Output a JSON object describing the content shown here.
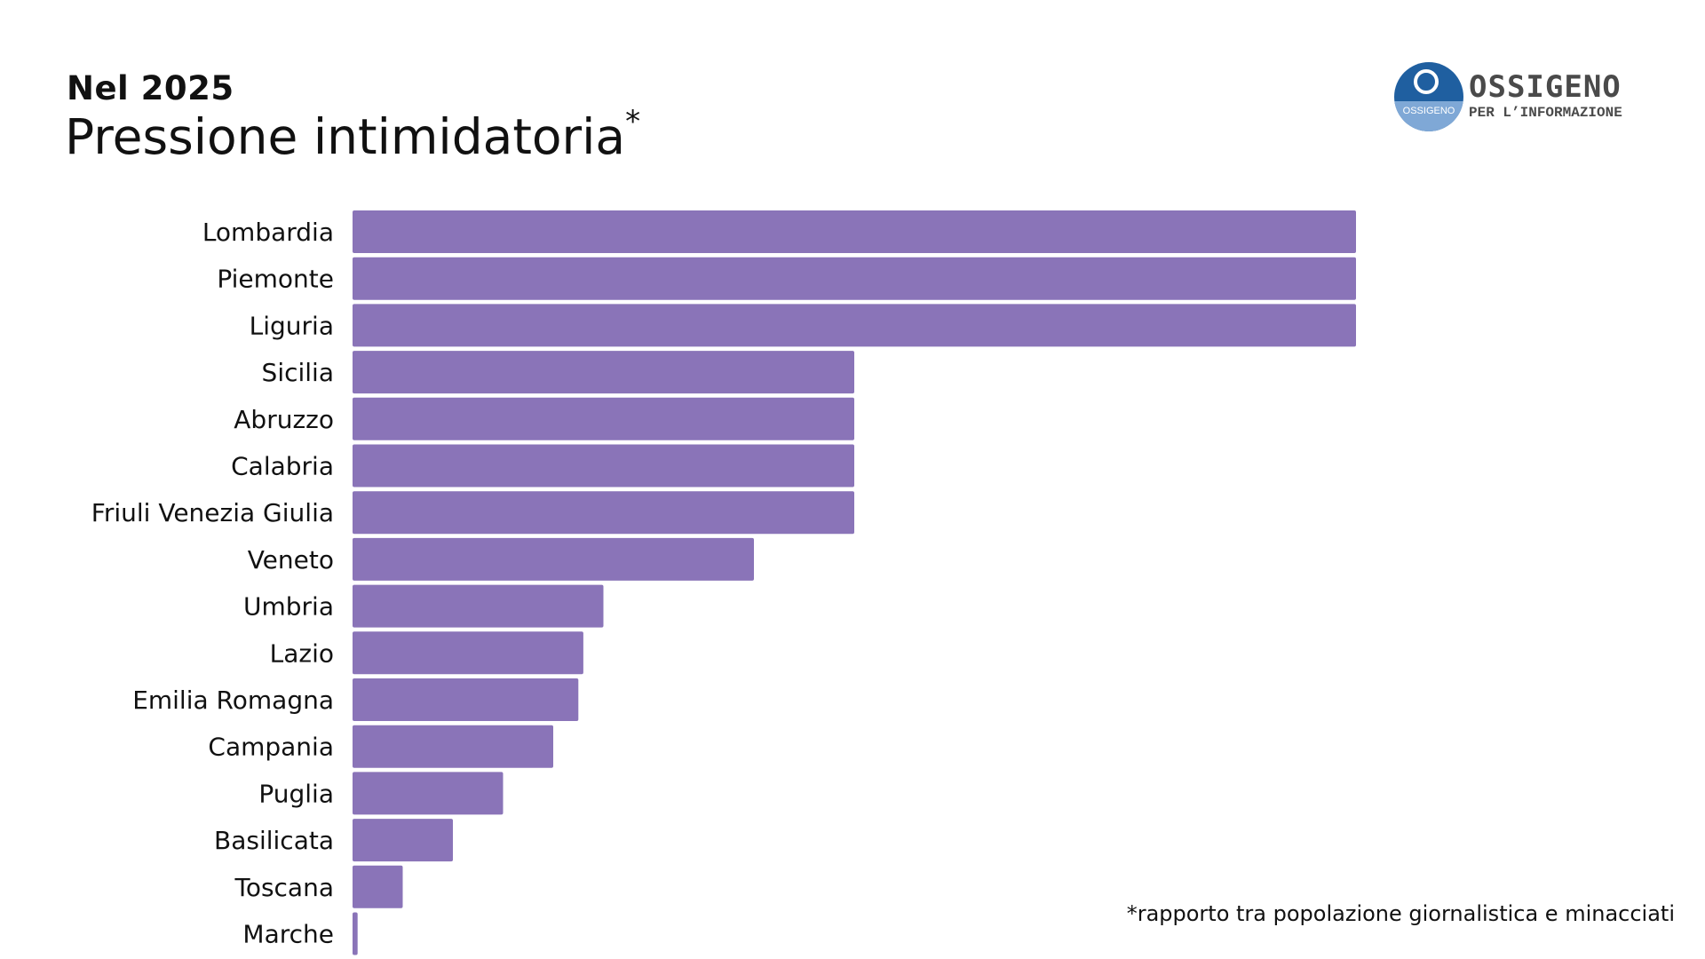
{
  "header": {
    "subtitle": "Nel 2025",
    "title": "Pressione intimidatoria",
    "title_marker": "*"
  },
  "logo": {
    "main": "OSSIGENO",
    "sub": "PER L’INFORMAZIONE",
    "badge": "OSSIGENO",
    "colors": {
      "dark": "#1f5fa0",
      "light": "#7fa8d6"
    }
  },
  "footnote": "*rapporto tra popolazione giornalistica e minacciati",
  "colors": {
    "bar": "#8a74b8"
  },
  "chart_data": {
    "type": "bar",
    "orientation": "horizontal",
    "title": "Pressione intimidatoria",
    "xlabel": "",
    "ylabel": "",
    "grid": false,
    "xlim": [
      0,
      100
    ],
    "categories": [
      "Lombardia",
      "Piemonte",
      "Liguria",
      "Sicilia",
      "Abruzzo",
      "Calabria",
      "Friuli Venezia Giulia",
      "Veneto",
      "Umbria",
      "Lazio",
      "Emilia Romagna",
      "Campania",
      "Puglia",
      "Basilicata",
      "Toscana",
      "Marche"
    ],
    "values": [
      100,
      100,
      100,
      50,
      50,
      50,
      50,
      40,
      25,
      23,
      22.5,
      20,
      15,
      10,
      5,
      0.5
    ]
  }
}
